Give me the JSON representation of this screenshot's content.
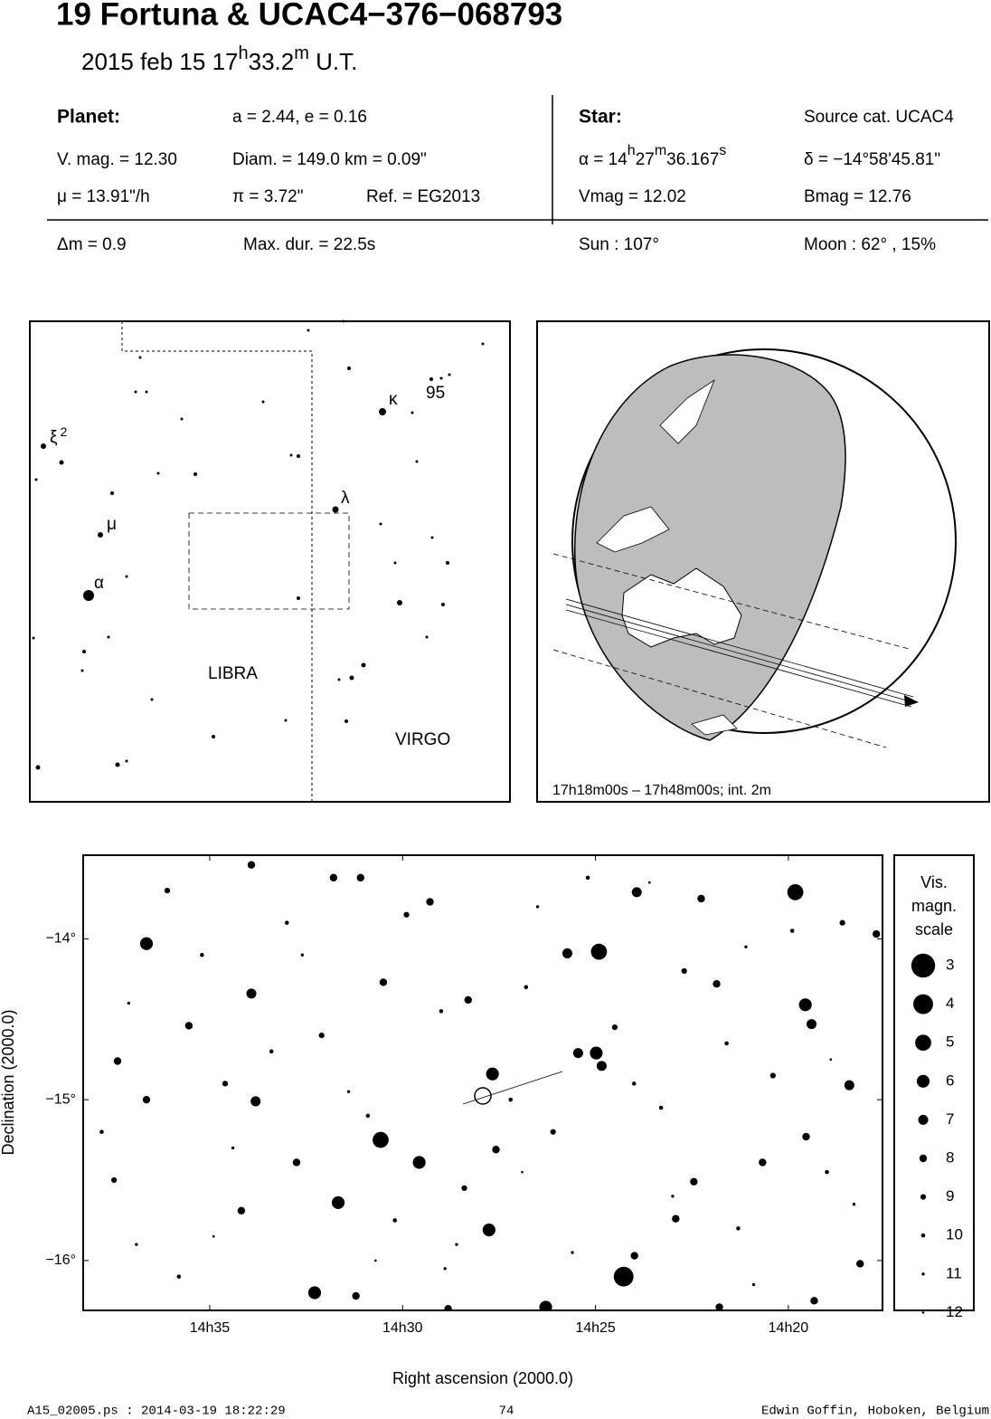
{
  "header": {
    "title": "19 Fortuna  &  UCAC4−376−068793",
    "subtitle": [
      "2015 feb 15  17",
      "h",
      "33.2",
      "m",
      " U.T."
    ]
  },
  "info": {
    "rows": [
      [
        "Planet:",
        "a = 2.44, e = 0.16",
        "Star:",
        "Source cat.  UCAC4"
      ],
      [
        "V. mag. = 12.30",
        "Diam. = 149.0 km = 0.09\"",
        [
          "α = 14",
          "h",
          "27",
          "m",
          "36.167",
          "s"
        ],
        "δ = −14°58'45.81\""
      ],
      [
        "μ =  13.91\"/h",
        "π =  3.72\"",
        "Ref. = EG2013",
        "Vmag = 12.02",
        "Bmag = 12.76"
      ],
      [
        "Δm = 0.9",
        "Max. dur. = 22.5s",
        "Sun : 107°",
        "Moon :  62° , 15%"
      ]
    ]
  },
  "finder": {
    "xi": [
      "ξ",
      "2"
    ],
    "mu": "μ",
    "alpha": "α",
    "kappa": "κ",
    "n95": "95",
    "lambda": "λ",
    "libra": "LIBRA",
    "virgo": "VIRGO"
  },
  "globe": {
    "caption": "17h18m00s – 17h48m00s; int.  2m"
  },
  "chart_data": {
    "type": "scatter",
    "x_label": "Right ascension (2000.0)",
    "y_label": "Declination (2000.0)",
    "xlim": [
      38.28,
      17.56
    ],
    "ylim": [
      -16.31,
      -13.48
    ],
    "xticks": [
      {
        "value": 35,
        "label": "14h35"
      },
      {
        "value": 30,
        "label": "14h30"
      },
      {
        "value": 25,
        "label": "14h25"
      },
      {
        "value": 20,
        "label": "14h20"
      }
    ],
    "yticks": [
      {
        "value": -14,
        "label": "−14°"
      },
      {
        "value": -15,
        "label": "−15°"
      },
      {
        "value": -16,
        "label": "−16°"
      }
    ],
    "x": [
      36.64,
      33.92,
      27.67,
      30.57,
      29.57,
      31.67,
      27.76,
      24.27,
      26.29,
      32.28,
      24.91,
      25.73,
      23.93,
      19.82,
      19.56,
      19.4,
      24.98,
      24.84,
      25.45,
      18.42,
      19.54,
      33.81,
      36.64,
      32.75,
      34.18,
      22.92,
      18.14,
      31.21,
      28.82,
      29.29,
      31.79,
      31.09,
      33.92,
      22.26,
      21.86,
      17.72,
      28.3,
      30.5,
      35.54,
      37.39,
      37.48,
      23.99,
      21.79,
      19.33,
      20.67,
      22.45,
      27.58,
      36.1,
      35.2,
      34.6,
      33.0,
      32.1,
      30.9,
      29.9,
      29.0,
      28.4,
      26.8,
      26.1,
      25.2,
      24.5,
      23.3,
      22.7,
      21.3,
      20.4,
      19.0,
      18.6,
      37.8,
      36.9,
      35.8,
      34.4,
      33.4,
      31.4,
      30.2,
      28.9,
      27.2,
      26.5,
      24.0,
      23.0,
      21.6,
      20.9,
      19.9,
      18.3,
      37.1,
      34.9,
      32.6,
      30.7,
      28.6,
      26.9,
      25.6,
      23.6,
      21.1,
      18.9
    ],
    "y": [
      -14.03,
      -14.34,
      -14.84,
      -15.25,
      -15.39,
      -15.64,
      -15.81,
      -16.1,
      -16.29,
      -16.2,
      -14.08,
      -14.09,
      -13.71,
      -13.71,
      -14.41,
      -14.53,
      -14.71,
      -14.79,
      -14.71,
      -14.91,
      -15.23,
      -15.01,
      -15.0,
      -15.39,
      -15.69,
      -15.74,
      -16.02,
      -16.22,
      -16.3,
      -13.77,
      -13.62,
      -13.62,
      -13.54,
      -13.75,
      -14.28,
      -13.97,
      -14.38,
      -14.27,
      -14.54,
      -14.76,
      -15.5,
      -15.97,
      -16.29,
      -16.25,
      -15.39,
      -15.51,
      -15.31,
      -13.7,
      -14.1,
      -14.9,
      -13.9,
      -14.6,
      -15.1,
      -13.85,
      -14.45,
      -15.55,
      -14.3,
      -15.2,
      -13.62,
      -14.55,
      -15.05,
      -14.2,
      -15.8,
      -14.85,
      -15.45,
      -13.9,
      -15.2,
      -15.9,
      -16.1,
      -15.3,
      -14.7,
      -14.95,
      -15.75,
      -16.05,
      -15.0,
      -13.8,
      -14.9,
      -15.6,
      -14.65,
      -16.15,
      -13.95,
      -15.65,
      -14.4,
      -15.85,
      -14.1,
      -16.0,
      -15.9,
      -15.45,
      -15.95,
      -13.65,
      -14.05,
      -14.75
    ],
    "mag": [
      6,
      7,
      6,
      5,
      6,
      6,
      6,
      4,
      6,
      6,
      5,
      7,
      7,
      5,
      6,
      7,
      6,
      7,
      7,
      7,
      8,
      7,
      8,
      8,
      8,
      8,
      8,
      8,
      8,
      8,
      8,
      8,
      8,
      8,
      8,
      8,
      8,
      8,
      8,
      8,
      9,
      8,
      8,
      8,
      8,
      8,
      8,
      9,
      10,
      9,
      10,
      9,
      10,
      9,
      10,
      9,
      10,
      9,
      10,
      9,
      10,
      9,
      10,
      9,
      10,
      9,
      10,
      11,
      10,
      11,
      10,
      11,
      10,
      11,
      10,
      11,
      10,
      11,
      10,
      11,
      10,
      11,
      11,
      12,
      11,
      12,
      11,
      12,
      11,
      12,
      11,
      12
    ],
    "legend": {
      "title": [
        "Vis.",
        "magn.",
        "scale"
      ],
      "mags": [
        3,
        4,
        5,
        6,
        7,
        8,
        9,
        10,
        11,
        12
      ]
    }
  },
  "footer": {
    "left": "A15_02005.ps : 2014-03-19 18:22:29",
    "center": "74",
    "right": "Edwin Goffin, Hoboken, Belgium"
  }
}
